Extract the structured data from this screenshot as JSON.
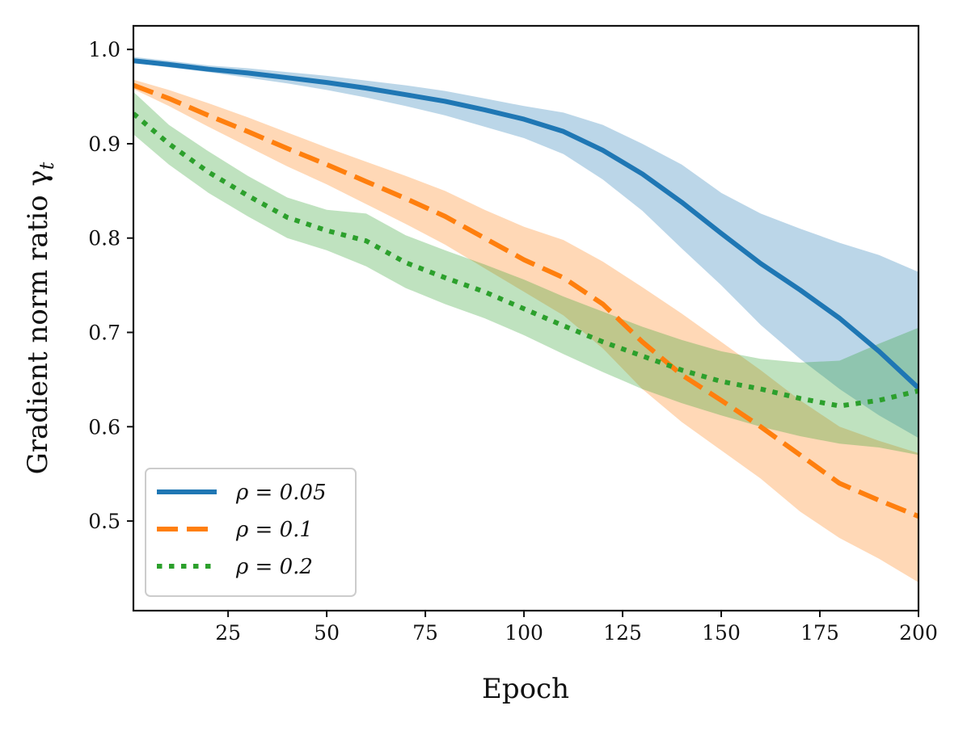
{
  "chart_data": {
    "type": "line",
    "title": "",
    "xlabel": "Epoch",
    "ylabel": "Gradient norm ratio γ",
    "ylabel_subscript": "t",
    "xlim": [
      1,
      200
    ],
    "ylim": [
      0.405,
      1.025
    ],
    "xticks": [
      25,
      50,
      75,
      100,
      125,
      150,
      175,
      200
    ],
    "xtick_labels": [
      "25",
      "50",
      "75",
      "100",
      "125",
      "150",
      "175",
      "200"
    ],
    "yticks": [
      0.5,
      0.6,
      0.7,
      0.8,
      0.9,
      1.0
    ],
    "ytick_labels": [
      "0.5",
      "0.6",
      "0.7",
      "0.8",
      "0.9",
      "1.0"
    ],
    "grid": false,
    "legend_position": "lower-left",
    "series": [
      {
        "name": "ρ = 0.05",
        "color": "#1f77b4",
        "style": "solid",
        "x": [
          1,
          10,
          20,
          30,
          40,
          50,
          60,
          70,
          80,
          90,
          100,
          110,
          120,
          130,
          140,
          150,
          160,
          170,
          180,
          190,
          200
        ],
        "y": [
          0.988,
          0.984,
          0.979,
          0.975,
          0.97,
          0.965,
          0.959,
          0.952,
          0.945,
          0.936,
          0.926,
          0.913,
          0.893,
          0.868,
          0.838,
          0.805,
          0.773,
          0.745,
          0.715,
          0.68,
          0.641
        ],
        "lower": [
          0.986,
          0.981,
          0.976,
          0.97,
          0.964,
          0.957,
          0.949,
          0.94,
          0.93,
          0.918,
          0.906,
          0.889,
          0.862,
          0.829,
          0.789,
          0.75,
          0.708,
          0.672,
          0.64,
          0.612,
          0.588
        ],
        "upper": [
          0.992,
          0.988,
          0.983,
          0.98,
          0.976,
          0.972,
          0.967,
          0.962,
          0.956,
          0.948,
          0.94,
          0.933,
          0.92,
          0.9,
          0.878,
          0.848,
          0.826,
          0.81,
          0.795,
          0.782,
          0.764
        ]
      },
      {
        "name": "ρ = 0.1",
        "color": "#ff7f0e",
        "style": "dashed",
        "x": [
          1,
          10,
          20,
          30,
          40,
          50,
          60,
          70,
          80,
          90,
          100,
          110,
          120,
          130,
          140,
          150,
          160,
          170,
          180,
          190,
          200
        ],
        "y": [
          0.962,
          0.948,
          0.93,
          0.913,
          0.895,
          0.878,
          0.86,
          0.842,
          0.823,
          0.8,
          0.777,
          0.758,
          0.73,
          0.69,
          0.655,
          0.628,
          0.6,
          0.57,
          0.54,
          0.522,
          0.505
        ],
        "lower": [
          0.958,
          0.94,
          0.918,
          0.897,
          0.876,
          0.857,
          0.836,
          0.815,
          0.793,
          0.768,
          0.743,
          0.718,
          0.683,
          0.64,
          0.605,
          0.575,
          0.545,
          0.51,
          0.482,
          0.46,
          0.435
        ],
        "upper": [
          0.968,
          0.957,
          0.943,
          0.928,
          0.912,
          0.896,
          0.881,
          0.866,
          0.85,
          0.83,
          0.812,
          0.798,
          0.775,
          0.748,
          0.72,
          0.69,
          0.66,
          0.628,
          0.6,
          0.585,
          0.572
        ]
      },
      {
        "name": "ρ = 0.2",
        "color": "#2ca02c",
        "style": "dotted",
        "x": [
          1,
          10,
          20,
          30,
          40,
          50,
          60,
          70,
          80,
          90,
          100,
          110,
          120,
          130,
          140,
          150,
          160,
          170,
          180,
          190,
          200
        ],
        "y": [
          0.932,
          0.9,
          0.87,
          0.845,
          0.822,
          0.808,
          0.797,
          0.774,
          0.758,
          0.743,
          0.725,
          0.707,
          0.69,
          0.675,
          0.66,
          0.648,
          0.64,
          0.63,
          0.622,
          0.628,
          0.638
        ],
        "lower": [
          0.91,
          0.878,
          0.848,
          0.823,
          0.8,
          0.787,
          0.77,
          0.747,
          0.73,
          0.715,
          0.697,
          0.677,
          0.658,
          0.64,
          0.625,
          0.612,
          0.6,
          0.59,
          0.582,
          0.578,
          0.57
        ],
        "upper": [
          0.955,
          0.92,
          0.892,
          0.866,
          0.843,
          0.83,
          0.826,
          0.803,
          0.787,
          0.772,
          0.756,
          0.738,
          0.722,
          0.706,
          0.692,
          0.68,
          0.672,
          0.668,
          0.67,
          0.688,
          0.705
        ]
      }
    ]
  }
}
